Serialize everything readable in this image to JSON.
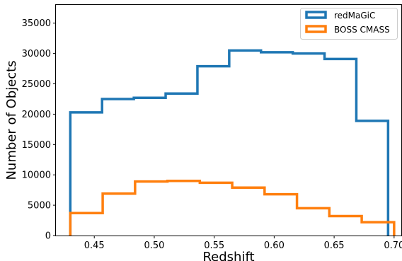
{
  "chart_data": {
    "type": "histogram-step",
    "title": "",
    "xlabel": "Redshift",
    "ylabel": "Number of Objects",
    "xlim": [
      0.418,
      0.706
    ],
    "ylim": [
      0,
      38000
    ],
    "xticks": [
      0.45,
      0.5,
      0.55,
      0.6,
      0.65,
      0.7
    ],
    "xtick_labels": [
      "0.45",
      "0.50",
      "0.55",
      "0.60",
      "0.65",
      "0.70"
    ],
    "yticks": [
      0,
      5000,
      10000,
      15000,
      20000,
      25000,
      30000,
      35000
    ],
    "ytick_labels": [
      "0",
      "5000",
      "10000",
      "15000",
      "20000",
      "25000",
      "30000",
      "35000"
    ],
    "grid": false,
    "legend_position": "top-right",
    "series": [
      {
        "name": "redMaGiC",
        "color": "#1f77b4",
        "bin_edges": [
          0.43,
          0.4565,
          0.483,
          0.5095,
          0.536,
          0.5625,
          0.589,
          0.6155,
          0.642,
          0.6685,
          0.695
        ],
        "values": [
          20300,
          22500,
          22700,
          23400,
          27900,
          30500,
          30200,
          30000,
          29100,
          18900
        ]
      },
      {
        "name": "BOSS CMASS",
        "color": "#ff7f0e",
        "bin_edges": [
          0.43,
          0.457,
          0.484,
          0.511,
          0.538,
          0.565,
          0.592,
          0.619,
          0.646,
          0.673,
          0.7
        ],
        "values": [
          3700,
          6900,
          8900,
          9000,
          8700,
          7900,
          6800,
          4500,
          3200,
          2200
        ]
      }
    ]
  }
}
